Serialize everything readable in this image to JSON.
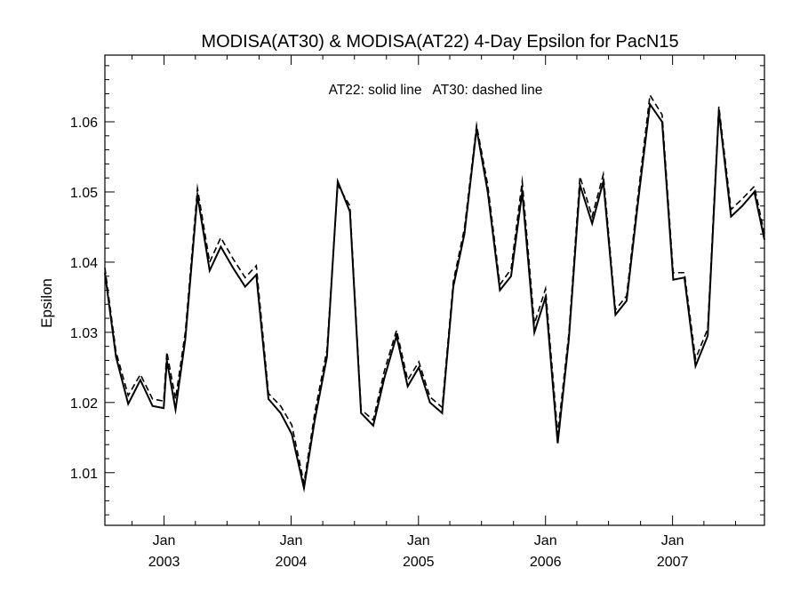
{
  "chart_data": {
    "type": "line",
    "title": "MODISA(AT30) & MODISA(AT22) 4-Day Epsilon for PacN15",
    "annotation": "AT22: solid line   AT30: dashed line",
    "xlabel": "",
    "ylabel": "Epsilon",
    "ylim": [
      1.0025,
      1.0695
    ],
    "xlim": [
      "2002-07-15",
      "2007-09-22"
    ],
    "yticks": [
      1.01,
      1.02,
      1.03,
      1.04,
      1.05,
      1.06
    ],
    "ytick_labels": [
      "1.01",
      "1.02",
      "1.03",
      "1.04",
      "1.05",
      "1.06"
    ],
    "xticks": [
      {
        "month": "Jan",
        "year": "2003",
        "date": "2003-01-01"
      },
      {
        "month": "Jan",
        "year": "2004",
        "date": "2004-01-01"
      },
      {
        "month": "Jan",
        "year": "2005",
        "date": "2005-01-01"
      },
      {
        "month": "Jan",
        "year": "2006",
        "date": "2006-01-01"
      },
      {
        "month": "Jan",
        "year": "2007",
        "date": "2007-01-01"
      }
    ],
    "grid": false,
    "series": [
      {
        "name": "AT22",
        "style": "solid",
        "color": "#000000",
        "x": [
          "2002-07-15",
          "2002-08-16",
          "2002-09-20",
          "2002-10-25",
          "2002-11-29",
          "2002-12-31",
          "2003-01-09",
          "2003-02-03",
          "2003-03-03",
          "2003-04-07",
          "2003-05-12",
          "2003-06-13",
          "2003-07-18",
          "2003-08-22",
          "2003-09-23",
          "2003-10-28",
          "2003-12-02",
          "2004-01-03",
          "2004-02-07",
          "2004-03-09",
          "2004-04-13",
          "2004-05-14",
          "2004-06-18",
          "2004-07-20",
          "2004-08-24",
          "2004-09-25",
          "2004-10-30",
          "2004-12-01",
          "2005-01-02",
          "2005-02-03",
          "2005-03-10",
          "2005-04-11",
          "2005-05-13",
          "2005-06-17",
          "2005-07-19",
          "2005-08-23",
          "2005-09-24",
          "2005-10-26",
          "2005-11-30",
          "2006-01-01",
          "2006-02-05",
          "2006-03-09",
          "2006-04-10",
          "2006-05-15",
          "2006-06-16",
          "2006-07-21",
          "2006-08-22",
          "2006-09-26",
          "2006-10-28",
          "2006-12-02",
          "2007-01-03",
          "2007-02-04",
          "2007-03-08",
          "2007-04-12",
          "2007-05-14",
          "2007-06-18",
          "2007-07-20",
          "2007-08-24",
          "2007-09-22"
        ],
        "y": [
          1.0385,
          1.0265,
          1.0198,
          1.0232,
          1.0195,
          1.0192,
          1.026,
          1.019,
          1.029,
          1.0495,
          1.0388,
          1.0422,
          1.0392,
          1.0365,
          1.0382,
          1.0205,
          1.0185,
          1.0155,
          1.0078,
          1.0175,
          1.0265,
          1.0515,
          1.0472,
          1.0185,
          1.0167,
          1.0235,
          1.0295,
          1.0223,
          1.025,
          1.02,
          1.0185,
          1.0365,
          1.044,
          1.059,
          1.05,
          1.036,
          1.038,
          1.05,
          1.03,
          1.035,
          1.0142,
          1.029,
          1.051,
          1.0455,
          1.0515,
          1.0325,
          1.0345,
          1.0495,
          1.0625,
          1.06,
          1.0375,
          1.0378,
          1.0252,
          1.0295,
          1.0615,
          1.0465,
          1.048,
          1.05,
          1.0432
        ]
      },
      {
        "name": "AT30",
        "style": "dashed",
        "color": "#000000",
        "x": [
          "2002-07-15",
          "2002-08-16",
          "2002-09-20",
          "2002-10-25",
          "2002-11-29",
          "2002-12-31",
          "2003-01-09",
          "2003-02-03",
          "2003-03-03",
          "2003-04-07",
          "2003-05-12",
          "2003-06-13",
          "2003-07-18",
          "2003-08-22",
          "2003-09-23",
          "2003-10-28",
          "2003-12-02",
          "2004-01-03",
          "2004-02-07",
          "2004-03-09",
          "2004-04-13",
          "2004-05-14",
          "2004-06-18",
          "2004-07-20",
          "2004-08-24",
          "2004-09-25",
          "2004-10-30",
          "2004-12-01",
          "2005-01-02",
          "2005-02-03",
          "2005-03-10",
          "2005-04-11",
          "2005-05-13",
          "2005-06-17",
          "2005-07-19",
          "2005-08-23",
          "2005-09-24",
          "2005-10-26",
          "2005-11-30",
          "2006-01-01",
          "2006-02-05",
          "2006-03-09",
          "2006-04-10",
          "2006-05-15",
          "2006-06-16",
          "2006-07-21",
          "2006-08-22",
          "2006-09-26",
          "2006-10-28",
          "2006-12-02",
          "2007-01-03",
          "2007-02-04",
          "2007-03-08",
          "2007-04-12",
          "2007-05-14",
          "2007-06-18",
          "2007-07-20",
          "2007-08-24",
          "2007-09-22"
        ],
        "y": [
          1.0392,
          1.0272,
          1.021,
          1.024,
          1.0205,
          1.0202,
          1.0272,
          1.0205,
          1.03,
          1.0505,
          1.04,
          1.0435,
          1.0405,
          1.0378,
          1.0395,
          1.0213,
          1.0195,
          1.0168,
          1.0085,
          1.0185,
          1.0275,
          1.051,
          1.048,
          1.019,
          1.0175,
          1.0245,
          1.0303,
          1.0232,
          1.0258,
          1.0208,
          1.0193,
          1.0372,
          1.0448,
          1.0595,
          1.051,
          1.0368,
          1.039,
          1.0515,
          1.0312,
          1.0362,
          1.0155,
          1.0298,
          1.0522,
          1.0465,
          1.0525,
          1.0332,
          1.0352,
          1.0505,
          1.0638,
          1.061,
          1.0385,
          1.0385,
          1.0262,
          1.0305,
          1.0622,
          1.0475,
          1.049,
          1.0508,
          1.044
        ]
      }
    ]
  }
}
